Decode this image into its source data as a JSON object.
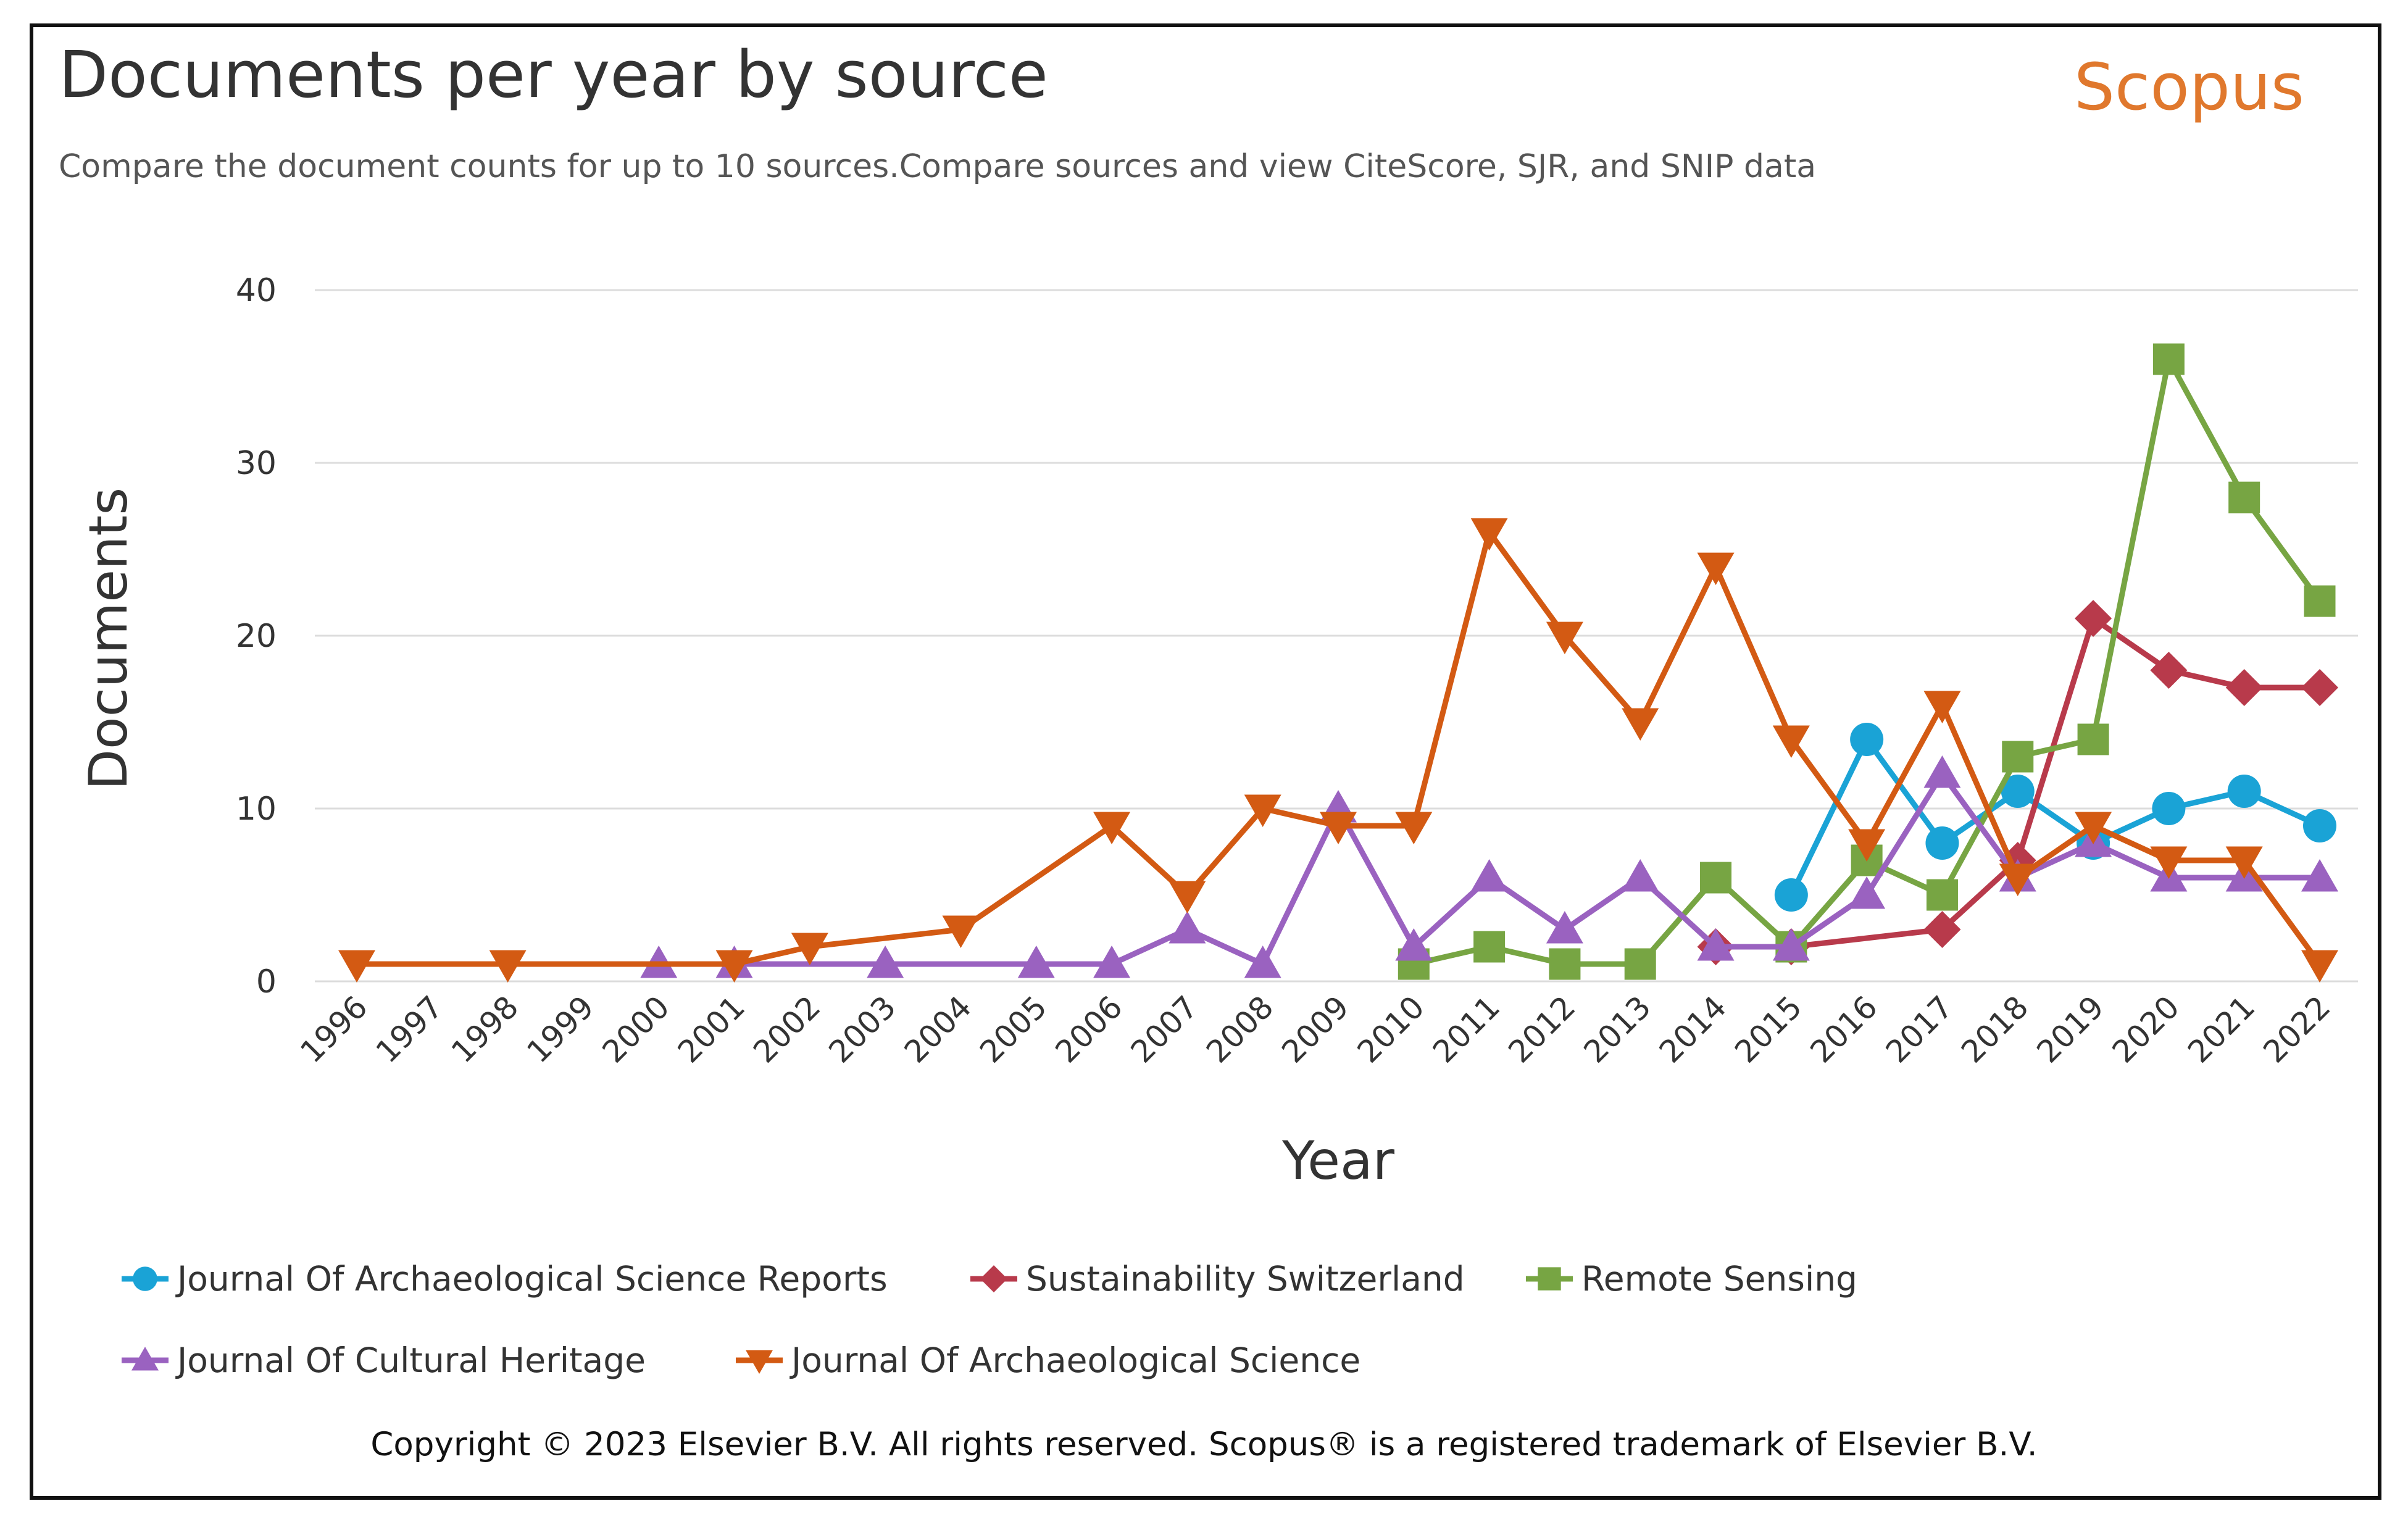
{
  "header": {
    "title": "Documents per year by source",
    "subtitle": "Compare the document counts for up to 10 sources.Compare sources and view CiteScore, SJR, and SNIP data",
    "brand": "Scopus"
  },
  "footer": {
    "copyright": "Copyright © 2023 Elsevier B.V. All rights reserved. Scopus® is a registered trademark of Elsevier B.V."
  },
  "chart_data": {
    "type": "line",
    "title": "Documents per year by source",
    "xlabel": "Year",
    "ylabel": "Documents",
    "ylim": [
      0,
      40
    ],
    "yticks": [
      0,
      10,
      20,
      30,
      40
    ],
    "grid": true,
    "legend_position": "bottom",
    "x": [
      "1996",
      "1997",
      "1998",
      "1999",
      "2000",
      "2001",
      "2002",
      "2003",
      "2004",
      "2005",
      "2006",
      "2007",
      "2008",
      "2009",
      "2010",
      "2011",
      "2012",
      "2013",
      "2014",
      "2015",
      "2016",
      "2017",
      "2018",
      "2019",
      "2020",
      "2021",
      "2022"
    ],
    "series": [
      {
        "name": "Journal Of Archaeological Science Reports",
        "color": "#1aa3d6",
        "marker": "circle",
        "points": [
          [
            "2015",
            5
          ],
          [
            "2016",
            14
          ],
          [
            "2017",
            8
          ],
          [
            "2018",
            11
          ],
          [
            "2019",
            8
          ],
          [
            "2020",
            10
          ],
          [
            "2021",
            11
          ],
          [
            "2022",
            9
          ]
        ]
      },
      {
        "name": "Sustainability Switzerland",
        "color": "#b83a4b",
        "marker": "diamond",
        "points": [
          [
            "2014",
            2
          ],
          [
            "2015",
            2
          ],
          [
            "2017",
            3
          ],
          [
            "2018",
            7
          ],
          [
            "2019",
            21
          ],
          [
            "2020",
            18
          ],
          [
            "2021",
            17
          ],
          [
            "2022",
            17
          ]
        ]
      },
      {
        "name": "Remote Sensing",
        "color": "#77a543",
        "marker": "square",
        "points": [
          [
            "2010",
            1
          ],
          [
            "2011",
            2
          ],
          [
            "2012",
            1
          ],
          [
            "2013",
            1
          ],
          [
            "2014",
            6
          ],
          [
            "2015",
            2
          ],
          [
            "2016",
            7
          ],
          [
            "2017",
            5
          ],
          [
            "2018",
            13
          ],
          [
            "2019",
            14
          ],
          [
            "2020",
            36
          ],
          [
            "2021",
            28
          ],
          [
            "2022",
            22
          ]
        ]
      },
      {
        "name": "Journal Of Cultural Heritage",
        "color": "#9a62c0",
        "marker": "triangle-up",
        "points": [
          [
            "2000",
            1
          ],
          [
            "2001",
            1
          ],
          [
            "2003",
            1
          ],
          [
            "2005",
            1
          ],
          [
            "2006",
            1
          ],
          [
            "2007",
            3
          ],
          [
            "2008",
            1
          ],
          [
            "2009",
            10
          ],
          [
            "2010",
            2
          ],
          [
            "2011",
            6
          ],
          [
            "2012",
            3
          ],
          [
            "2013",
            6
          ],
          [
            "2014",
            2
          ],
          [
            "2015",
            2
          ],
          [
            "2016",
            5
          ],
          [
            "2017",
            12
          ],
          [
            "2018",
            6
          ],
          [
            "2019",
            8
          ],
          [
            "2020",
            6
          ],
          [
            "2021",
            6
          ],
          [
            "2022",
            6
          ]
        ]
      },
      {
        "name": "Journal Of Archaeological Science",
        "color": "#d35a13",
        "marker": "triangle-down",
        "points": [
          [
            "1996",
            1
          ],
          [
            "1998",
            1
          ],
          [
            "2001",
            1
          ],
          [
            "2002",
            2
          ],
          [
            "2004",
            3
          ],
          [
            "2006",
            9
          ],
          [
            "2007",
            5
          ],
          [
            "2008",
            10
          ],
          [
            "2009",
            9
          ],
          [
            "2010",
            9
          ],
          [
            "2011",
            26
          ],
          [
            "2012",
            20
          ],
          [
            "2013",
            15
          ],
          [
            "2014",
            24
          ],
          [
            "2015",
            14
          ],
          [
            "2016",
            8
          ],
          [
            "2017",
            16
          ],
          [
            "2018",
            6
          ],
          [
            "2019",
            9
          ],
          [
            "2020",
            7
          ],
          [
            "2021",
            7
          ],
          [
            "2022",
            1
          ]
        ]
      }
    ]
  }
}
